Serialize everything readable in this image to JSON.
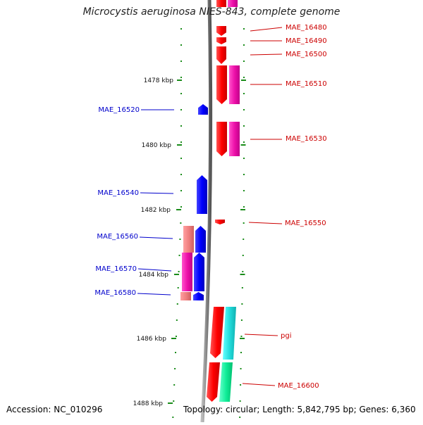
{
  "title": "Microcystis aeruginosa NIES-843, complete genome",
  "accession": "Accession: NC_010296",
  "topology": "Topology: circular; Length: 5,842,795 bp; Genes: 6,360",
  "colors": {
    "reverse_label": "#0000cc",
    "forward_label": "#cc0000",
    "backbone": "#888888",
    "tick": "#1a8c1a"
  },
  "ticks": [
    {
      "label": "1478 kbp"
    },
    {
      "label": "1480 kbp"
    },
    {
      "label": "1482 kbp"
    },
    {
      "label": "1484 kbp"
    },
    {
      "label": "1486 kbp"
    },
    {
      "label": "1488 kbp"
    }
  ],
  "genes": [
    {
      "label": "MAE_16480",
      "strand": "forward",
      "color": "#ff0000"
    },
    {
      "label": "MAE_16490",
      "strand": "forward",
      "color": "#ff0000"
    },
    {
      "label": "MAE_16500",
      "strand": "forward",
      "color": "#ff0000"
    },
    {
      "label": "MAE_16510",
      "strand": "forward",
      "color": "#ff0000"
    },
    {
      "label": "MAE_16520",
      "strand": "reverse",
      "color": "#0000ff"
    },
    {
      "label": "MAE_16530",
      "strand": "forward",
      "color": "#ff0000"
    },
    {
      "label": "MAE_16540",
      "strand": "reverse",
      "color": "#0000ff"
    },
    {
      "label": "MAE_16550",
      "strand": "forward",
      "color": "#ff0000"
    },
    {
      "label": "MAE_16560",
      "strand": "reverse",
      "color": "#0000ff"
    },
    {
      "label": "MAE_16570",
      "strand": "reverse",
      "color": "#0000ff"
    },
    {
      "label": "MAE_16580",
      "strand": "reverse",
      "color": "#0000ff"
    },
    {
      "label": "pgi",
      "strand": "forward",
      "color": "#ff0000"
    },
    {
      "label": "MAE_16600",
      "strand": "forward",
      "color": "#ff0000"
    }
  ]
}
